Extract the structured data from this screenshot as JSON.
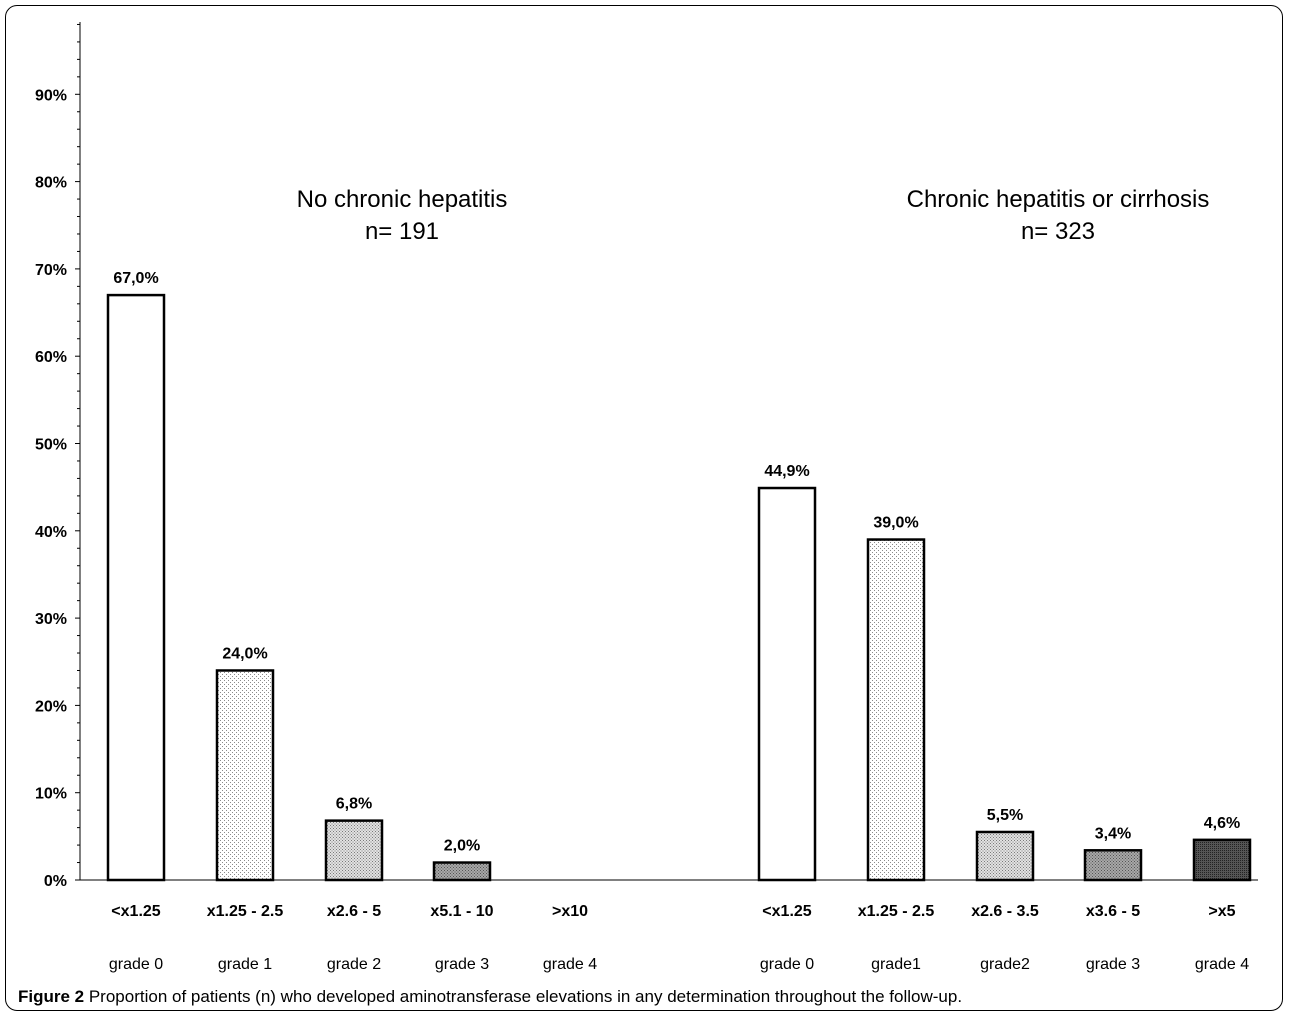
{
  "figure": {
    "caption_label": "Figure 2",
    "caption_text": " Proportion of patients (n) who developed aminotransferase elevations in any determination throughout the follow-up."
  },
  "chart_data": {
    "type": "bar",
    "ylim": [
      0,
      100
    ],
    "y_ticks": [
      "0%",
      "10%",
      "20%",
      "30%",
      "40%",
      "50%",
      "60%",
      "70%",
      "80%",
      "90%"
    ],
    "grid": false,
    "groups": [
      {
        "title_line1": "No chronic hepatitis",
        "title_line2": "n= 191",
        "categories": [
          "<x1.25",
          "x1.25 - 2.5",
          "x2.6 - 5",
          "x5.1 - 10",
          ">x10"
        ],
        "grades": [
          "grade 0",
          "grade 1",
          "grade 2",
          "grade 3",
          "grade 4"
        ],
        "values": [
          67.0,
          24.0,
          6.8,
          2.0,
          null
        ],
        "value_labels": [
          "67,0%",
          "24,0%",
          "6,8%",
          "2,0%",
          ""
        ]
      },
      {
        "title_line1": "Chronic hepatitis or cirrhosis",
        "title_line2": "n= 323",
        "categories": [
          "<x1.25",
          "x1.25 - 2.5",
          "x2.6 - 3.5",
          "x3.6 - 5",
          ">x5"
        ],
        "grades": [
          "grade 0",
          "grade1",
          "grade2",
          "grade 3",
          "grade 4"
        ],
        "values": [
          44.9,
          39.0,
          5.5,
          3.4,
          4.6
        ],
        "value_labels": [
          "44,9%",
          "39,0%",
          "5,5%",
          "3,4%",
          "4,6%"
        ]
      }
    ],
    "bar_fills": [
      "white",
      "light-dots",
      "medium-dots",
      "dark-dots",
      "dense-dots"
    ]
  }
}
